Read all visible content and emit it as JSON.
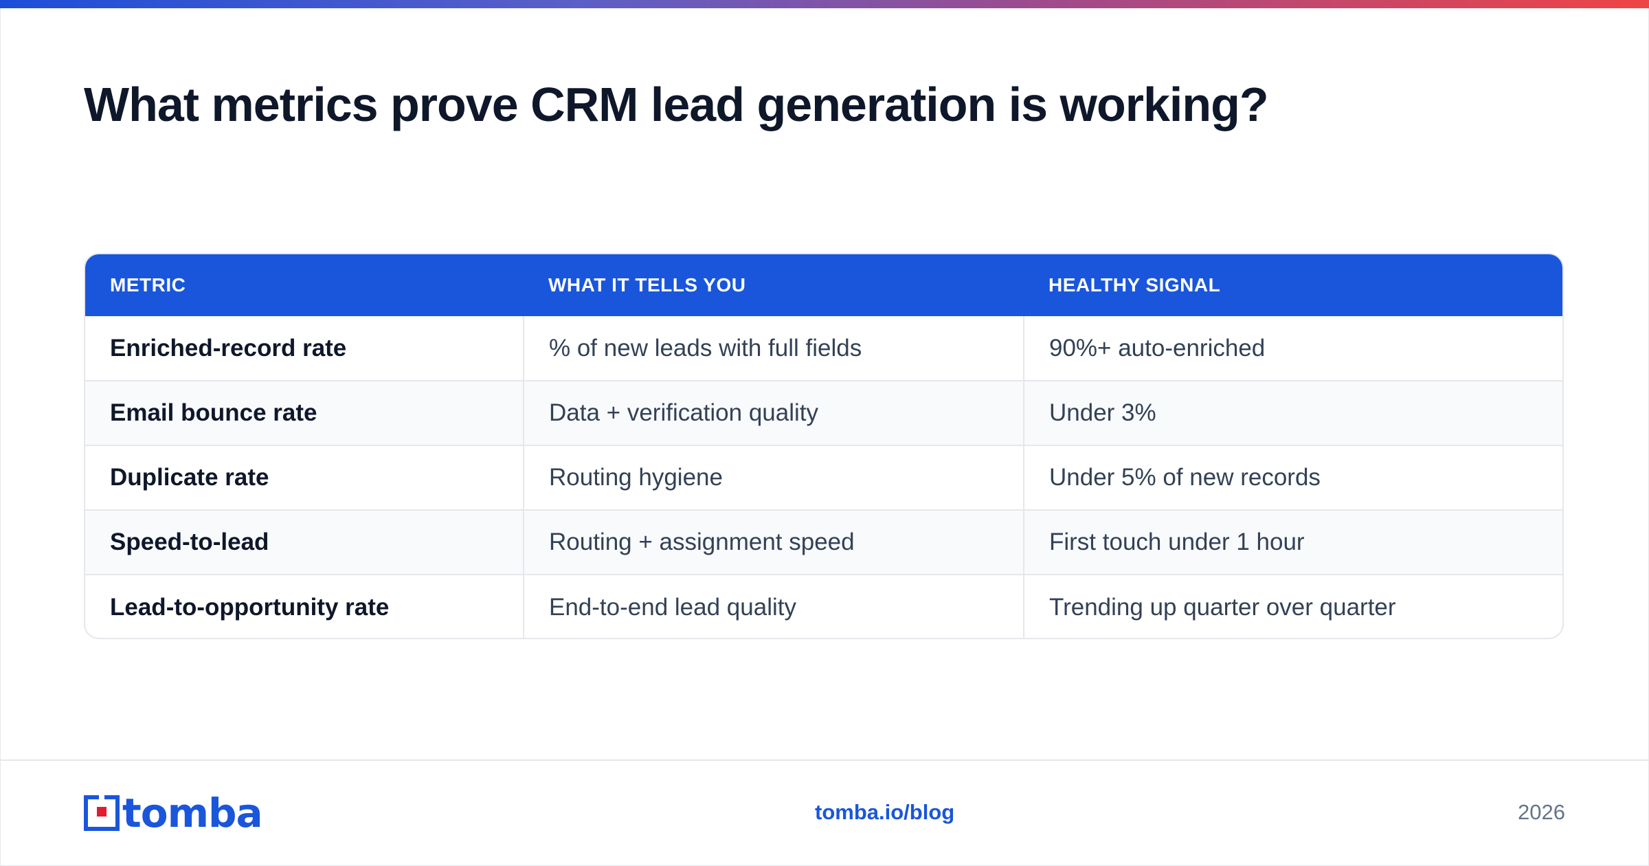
{
  "header": {
    "title": "What metrics prove CRM lead generation is working?"
  },
  "table": {
    "columns": [
      "METRIC",
      "WHAT IT TELLS YOU",
      "HEALTHY SIGNAL"
    ],
    "rows": [
      [
        "Enriched-record rate",
        "% of new leads with full fields",
        "90%+ auto-enriched"
      ],
      [
        "Email bounce rate",
        "Data + verification quality",
        "Under 3%"
      ],
      [
        "Duplicate rate",
        "Routing hygiene",
        "Under 5% of new records"
      ],
      [
        "Speed-to-lead",
        "Routing + assignment speed",
        "First touch under 1 hour"
      ],
      [
        "Lead-to-opportunity rate",
        "End-to-end lead quality",
        "Trending up quarter over quarter"
      ]
    ]
  },
  "footer": {
    "logo_text": "tomba",
    "link": "tomba.io/blog",
    "year": "2026"
  },
  "colors": {
    "accent": "#1a56db",
    "logo_red": "#e11d2e",
    "title": "#0f172a"
  }
}
